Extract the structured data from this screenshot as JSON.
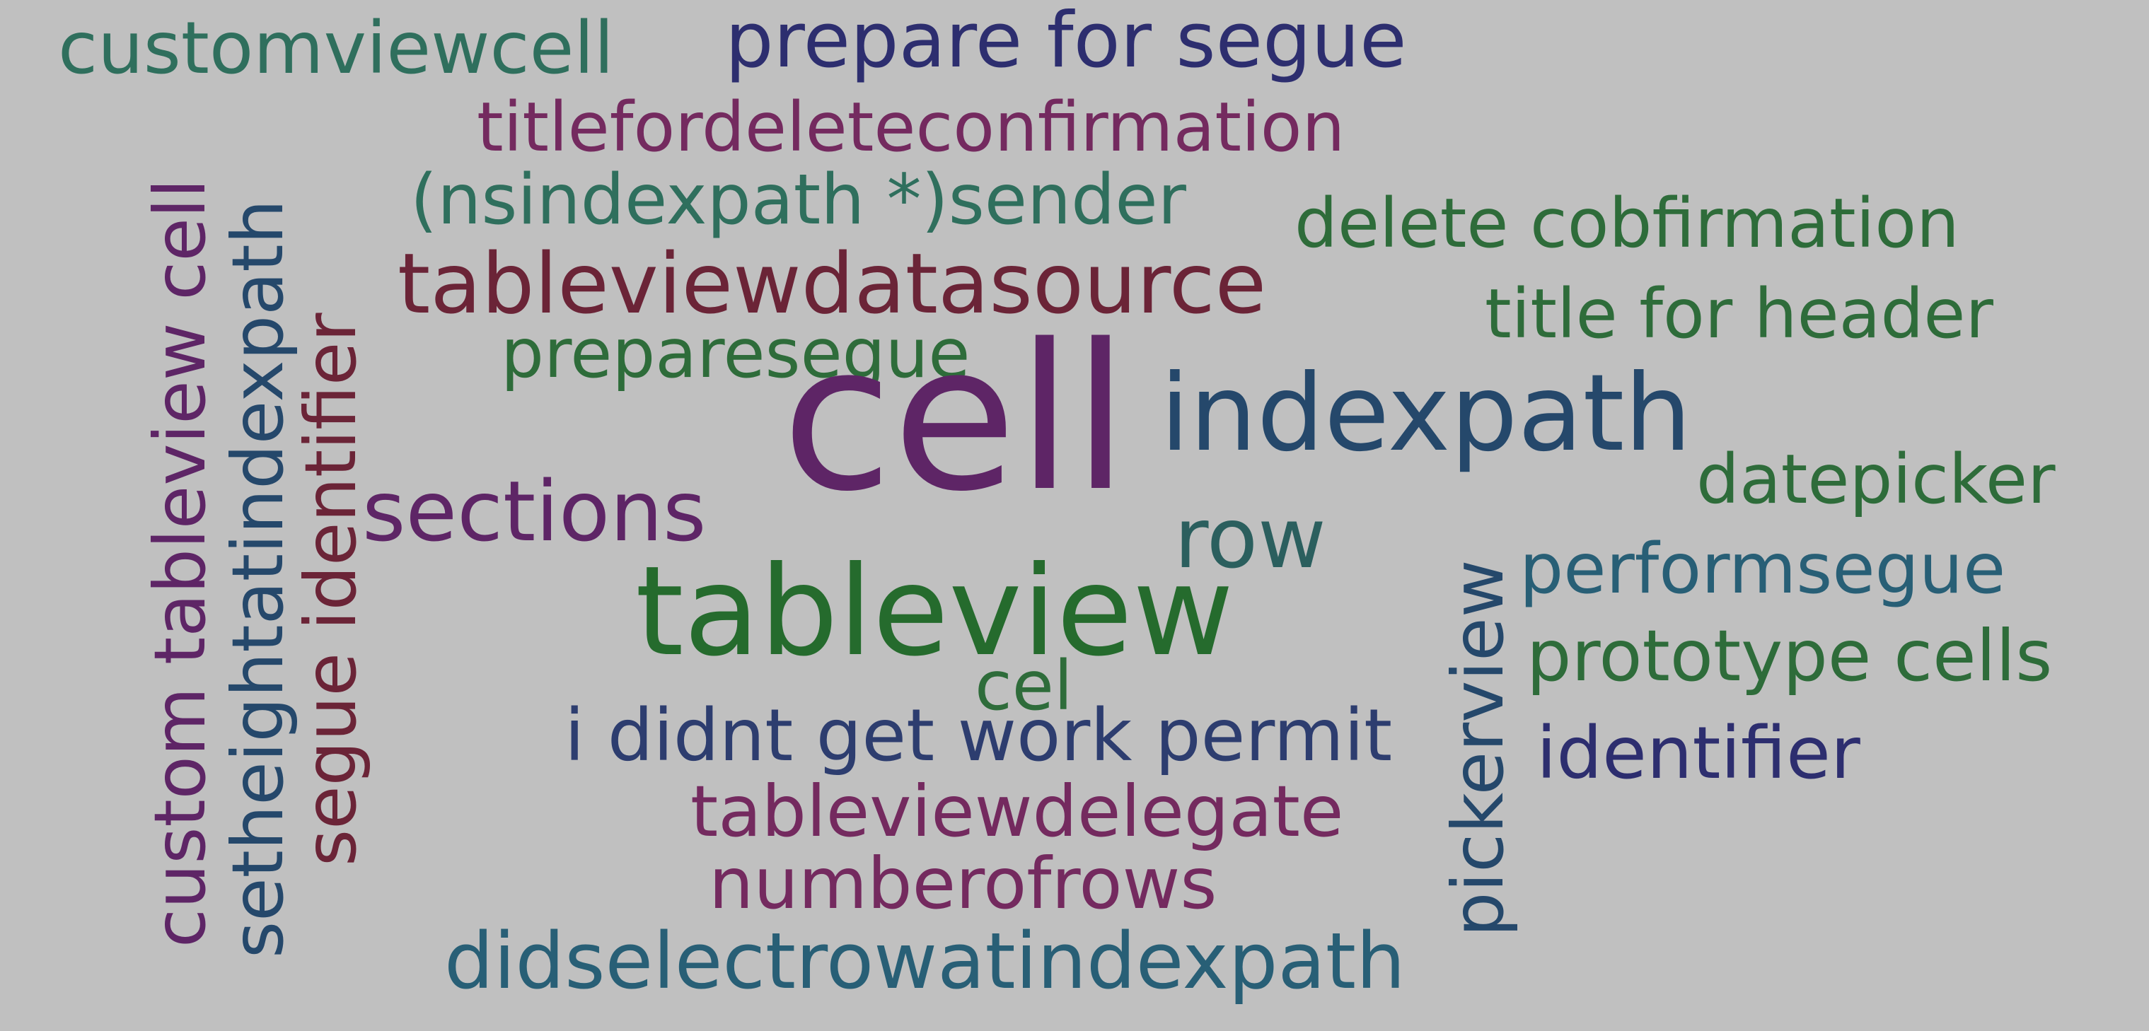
{
  "words": [
    {
      "text": "customviewcell",
      "color": "#2f6f5d"
    },
    {
      "text": "prepare for segue",
      "color": "#2d2e6f"
    },
    {
      "text": "titlefordeleteconfirmation",
      "color": "#742a5f"
    },
    {
      "text": "(nsindexpath *)sender",
      "color": "#2f6f5d"
    },
    {
      "text": "delete cobfirmation",
      "color": "#2e6c3a"
    },
    {
      "text": "tableviewdatasource",
      "color": "#6b2437"
    },
    {
      "text": "title for header",
      "color": "#2e6c3a"
    },
    {
      "text": "preparesegue",
      "color": "#2e6c3a"
    },
    {
      "text": "cell",
      "color": "#5e2566"
    },
    {
      "text": "indexpath",
      "color": "#25486b"
    },
    {
      "text": "datepicker",
      "color": "#2e6c3a"
    },
    {
      "text": "sections",
      "color": "#5e2566"
    },
    {
      "text": "row",
      "color": "#2b5f5e"
    },
    {
      "text": "tableview",
      "color": "#256b2d"
    },
    {
      "text": "performsegue",
      "color": "#285f76"
    },
    {
      "text": "prototype cells",
      "color": "#2e6c3a"
    },
    {
      "text": "cel",
      "color": "#2e6c3a"
    },
    {
      "text": "i didnt get work permit",
      "color": "#2d3d6f"
    },
    {
      "text": "identifier",
      "color": "#2d2e6f"
    },
    {
      "text": "tableviewdelegate",
      "color": "#742a5f"
    },
    {
      "text": "numberofrows",
      "color": "#742a5f"
    },
    {
      "text": "didselectrowatindexpath",
      "color": "#285f76"
    },
    {
      "text": "custom tableview cell",
      "color": "#5e2566"
    },
    {
      "text": "setheightatindexpath",
      "color": "#25486b"
    },
    {
      "text": "segue identifier",
      "color": "#6b2437"
    },
    {
      "text": "pickerview",
      "color": "#25486b"
    }
  ]
}
